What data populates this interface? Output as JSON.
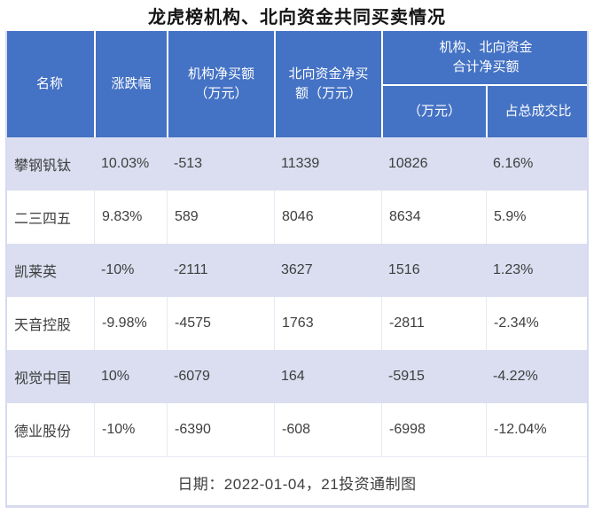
{
  "title": "龙虎榜机构、北向资金共同买卖情况",
  "table": {
    "headers": {
      "name": "名称",
      "change": "涨跌幅",
      "inst_net_buy": "机构净买额\n（万元）",
      "north_net_buy": "北向资金净买\n额（万元）",
      "combined_group": "机构、北向资金\n合计净买额",
      "combined_amount": "（万元）",
      "combined_ratio": "占总成交比"
    },
    "rows": [
      {
        "name": "攀钢钒钛",
        "change": "10.03%",
        "inst": "-513",
        "north": "11339",
        "total": "10826",
        "ratio": "6.16%"
      },
      {
        "name": "二三四五",
        "change": "9.83%",
        "inst": "589",
        "north": "8046",
        "total": "8634",
        "ratio": "5.9%"
      },
      {
        "name": "凯莱英",
        "change": "-10%",
        "inst": "-2111",
        "north": "3627",
        "total": "1516",
        "ratio": "1.23%"
      },
      {
        "name": "天音控股",
        "change": "-9.98%",
        "inst": "-4575",
        "north": "1763",
        "total": "-2811",
        "ratio": "-2.34%"
      },
      {
        "name": "视觉中国",
        "change": "10%",
        "inst": "-6079",
        "north": "164",
        "total": "-5915",
        "ratio": "-4.22%"
      },
      {
        "name": "德业股份",
        "change": "-10%",
        "inst": "-6390",
        "north": "-608",
        "total": "-6998",
        "ratio": "-12.04%"
      }
    ],
    "footer": "日期：2022-01-04，21投资通制图"
  },
  "colors": {
    "header_bg": "#4472C4",
    "header_text": "#FFFFFF",
    "row_alt_bg": "#DADEF0",
    "row_bg": "#FFFFFF",
    "divider": "#E7E9F3",
    "outer_border": "#D7DBEE",
    "text": "#3E3E3E",
    "title_text": "#141414"
  },
  "chart_data": {
    "type": "table",
    "title": "龙虎榜机构、北向资金共同买卖情况",
    "columns": [
      "名称",
      "涨跌幅",
      "机构净买额（万元）",
      "北向资金净买额（万元）",
      "机构、北向资金合计净买额（万元）",
      "机构、北向资金合计净买额占总成交比"
    ],
    "rows": [
      [
        "攀钢钒钛",
        "10.03%",
        -513,
        11339,
        10826,
        "6.16%"
      ],
      [
        "二三四五",
        "9.83%",
        589,
        8046,
        8634,
        "5.9%"
      ],
      [
        "凯莱英",
        "-10%",
        -2111,
        3627,
        1516,
        "1.23%"
      ],
      [
        "天音控股",
        "-9.98%",
        -4575,
        1763,
        -2811,
        "-2.34%"
      ],
      [
        "视觉中国",
        "10%",
        -6079,
        164,
        -5915,
        "-4.22%"
      ],
      [
        "德业股份",
        "-10%",
        -6390,
        -608,
        -6998,
        "-12.04%"
      ]
    ],
    "note": "日期：2022-01-04，21投资通制图",
    "layout": {
      "zebra_striping": true,
      "header_merged_last_two_columns": true
    }
  }
}
